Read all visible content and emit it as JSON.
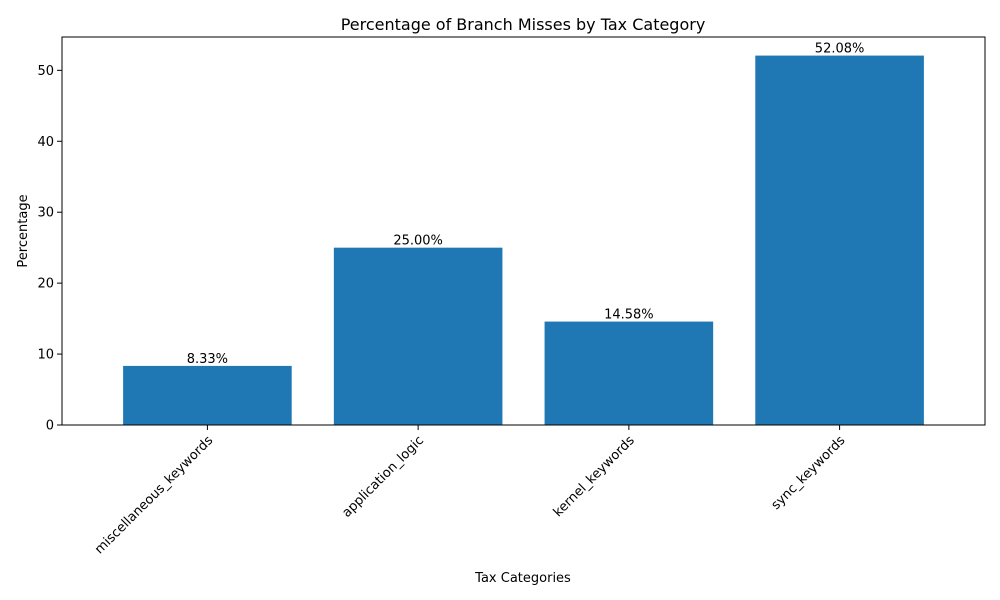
{
  "chart_data": {
    "type": "bar",
    "title": "Percentage of Branch Misses by Tax Category",
    "xlabel": "Tax Categories",
    "ylabel": "Percentage",
    "categories": [
      "miscellaneous_keywords",
      "application_logic",
      "kernel_keywords",
      "sync_keywords"
    ],
    "values": [
      8.33,
      25.0,
      14.58,
      52.08
    ],
    "data_labels": [
      "8.33%",
      "25.00%",
      "14.58%",
      "52.08%"
    ],
    "ylim": [
      0,
      54.7
    ],
    "yticks": [
      0,
      10,
      20,
      30,
      40,
      50
    ],
    "grid": false,
    "colors": {
      "bar": "#1f77b4"
    }
  }
}
